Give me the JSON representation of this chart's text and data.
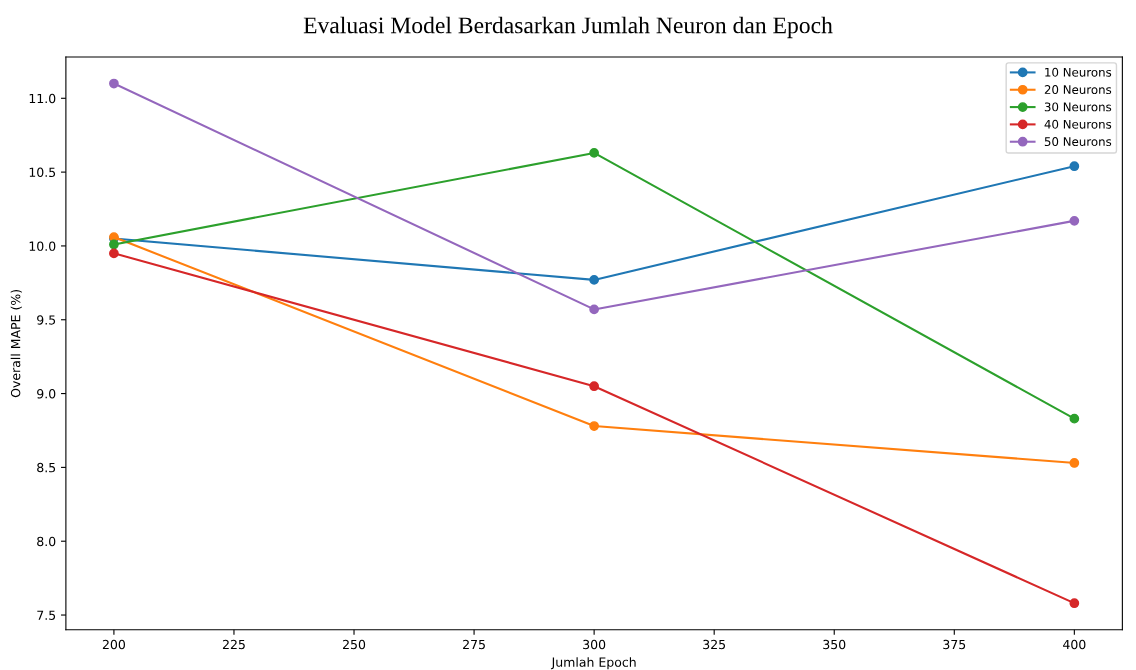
{
  "chart_data": {
    "type": "line",
    "title": "Evaluasi Model Berdasarkan Jumlah Neuron dan Epoch",
    "xlabel": "Jumlah Epoch",
    "ylabel": "Overall MAPE (%)",
    "x": [
      200,
      300,
      400
    ],
    "series": [
      {
        "name": "10 Neurons",
        "color": "#1f77b4",
        "values": [
          10.05,
          9.77,
          10.54
        ]
      },
      {
        "name": "20 Neurons",
        "color": "#ff7f0e",
        "values": [
          10.06,
          8.78,
          8.53
        ]
      },
      {
        "name": "30 Neurons",
        "color": "#2ca02c",
        "values": [
          10.01,
          10.63,
          8.83
        ]
      },
      {
        "name": "40 Neurons",
        "color": "#d62728",
        "values": [
          9.95,
          9.05,
          7.58
        ]
      },
      {
        "name": "50 Neurons",
        "color": "#9467bd",
        "values": [
          11.1,
          9.57,
          10.17
        ]
      }
    ],
    "xlim": [
      190,
      410
    ],
    "xticks": [
      200,
      225,
      250,
      275,
      300,
      325,
      350,
      375,
      400
    ],
    "ylim": [
      7.4,
      11.28
    ],
    "yticks": [
      {
        "value": 7.5,
        "label": "7.5"
      },
      {
        "value": 8.0,
        "label": "8.0"
      },
      {
        "value": 8.5,
        "label": "8.5"
      },
      {
        "value": 9.0,
        "label": "9.0"
      },
      {
        "value": 9.5,
        "label": "9.5"
      },
      {
        "value": 10.0,
        "label": "10.0"
      },
      {
        "value": 10.5,
        "label": "10.5"
      },
      {
        "value": 11.0,
        "label": "11.0"
      }
    ],
    "marker": "circle",
    "line_style": "solid",
    "legend": "top right",
    "grid": false
  }
}
